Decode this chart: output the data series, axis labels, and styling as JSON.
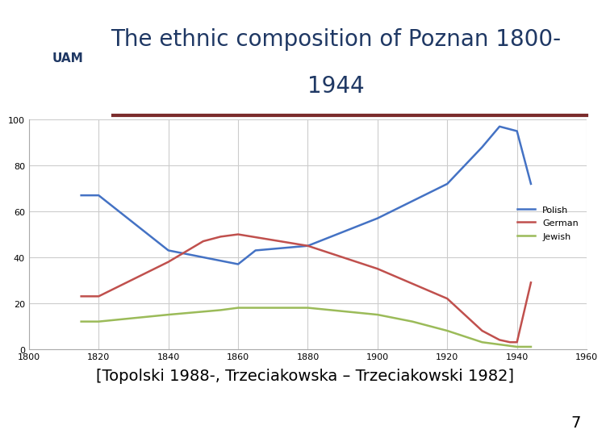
{
  "title_line1": "The ethnic composition of Poznan 1800-",
  "title_line2": "1944",
  "subtitle_ref": "[Topolski 1988-, Trzeciakowska – Trzeciakowski 1982]",
  "page_number": "7",
  "polish_x": [
    1815,
    1820,
    1840,
    1860,
    1865,
    1880,
    1900,
    1920,
    1930,
    1935,
    1940,
    1944
  ],
  "polish_y": [
    67,
    67,
    43,
    37,
    43,
    45,
    57,
    72,
    88,
    97,
    95,
    72
  ],
  "german_x": [
    1815,
    1820,
    1840,
    1850,
    1855,
    1860,
    1880,
    1900,
    1920,
    1930,
    1935,
    1938,
    1940,
    1944
  ],
  "german_y": [
    23,
    23,
    38,
    47,
    49,
    50,
    45,
    35,
    22,
    8,
    4,
    3,
    3,
    29
  ],
  "jewish_x": [
    1815,
    1820,
    1840,
    1855,
    1860,
    1880,
    1900,
    1910,
    1920,
    1930,
    1935,
    1940,
    1944
  ],
  "jewish_y": [
    12,
    12,
    15,
    17,
    18,
    18,
    15,
    12,
    8,
    3,
    2,
    1,
    1
  ],
  "polish_color": "#4472C4",
  "german_color": "#C0504D",
  "jewish_color": "#9BBB59",
  "xlim": [
    1800,
    1960
  ],
  "ylim": [
    0,
    100
  ],
  "xticks": [
    1800,
    1820,
    1840,
    1860,
    1880,
    1900,
    1920,
    1940,
    1960
  ],
  "yticks": [
    0,
    20,
    40,
    60,
    80,
    100
  ],
  "bg_color": "#FFFFFF",
  "title_color": "#1F3864",
  "separator_color": "#7B2C2C",
  "ref_text_color": "#000000",
  "title_fontsize": 20,
  "ref_fontsize": 14,
  "page_fontsize": 14
}
